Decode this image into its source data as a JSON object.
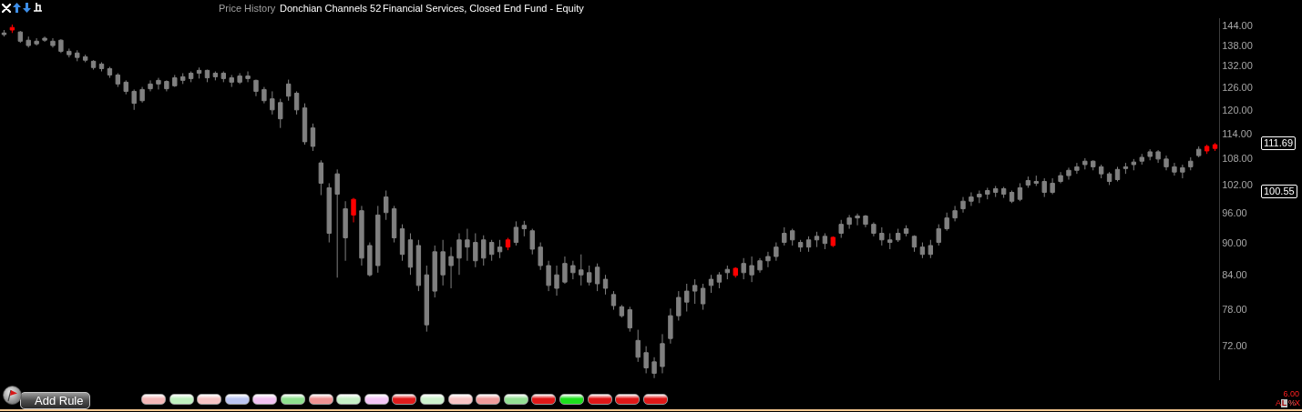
{
  "chart_data": {
    "type": "candlestick",
    "title": "Price History",
    "subtitle": "Donchian Channels 52",
    "annotations": [
      "Financial Services, Closed End Fund - Equity",
      "Add Rule",
      "6.00",
      "111.69",
      "100.55",
      "A",
      "L",
      "%",
      "X"
    ],
    "log": true,
    "tick_labels": "y",
    "ylim": [
      66.9,
      146.3
    ],
    "yticks": [
      {
        "value": 72,
        "label": "72.00"
      },
      {
        "value": 78,
        "label": "78.00"
      },
      {
        "value": 84,
        "label": "84.00"
      },
      {
        "value": 90,
        "label": "90.00"
      },
      {
        "value": 96,
        "label": "96.00"
      },
      {
        "value": 102,
        "label": "102.00"
      },
      {
        "value": 108,
        "label": "108.00"
      },
      {
        "value": 114,
        "label": "114.00"
      },
      {
        "value": 120,
        "label": "120.00"
      },
      {
        "value": 126,
        "label": "126.00"
      },
      {
        "value": 132,
        "label": "132.00"
      },
      {
        "value": 138,
        "label": "138.00"
      },
      {
        "value": 144,
        "label": "144.00"
      }
    ],
    "categories": [
      null,
      null,
      null,
      null,
      null,
      null,
      null,
      null,
      null,
      null,
      null,
      null,
      null,
      null,
      null,
      null,
      null,
      null,
      null,
      null,
      null,
      null,
      null,
      null,
      null,
      null,
      null,
      null,
      null,
      null,
      null,
      null,
      null,
      null,
      null,
      null,
      null,
      null,
      null,
      null,
      null,
      null,
      null,
      null,
      null,
      null,
      null,
      null,
      null,
      null,
      null,
      null,
      null,
      null,
      null,
      null,
      null,
      null,
      null,
      null,
      null,
      null,
      null,
      null,
      null,
      null,
      null,
      null,
      null,
      null,
      null,
      null,
      null,
      null,
      null,
      null,
      null,
      null,
      null,
      null,
      null,
      null,
      null,
      null,
      null,
      null,
      null,
      null,
      null,
      null,
      null,
      null,
      null,
      null,
      null,
      null,
      null,
      null,
      null,
      null,
      null,
      null,
      null,
      null,
      null,
      null,
      null,
      null,
      null,
      null,
      null,
      null,
      null,
      null,
      null,
      null,
      null,
      null,
      null,
      null,
      null,
      null,
      null,
      null,
      null,
      null,
      null,
      null,
      null,
      null,
      null,
      null,
      null,
      null,
      null,
      null,
      null,
      null,
      null,
      null,
      null,
      null,
      null,
      null,
      null,
      null,
      null,
      null,
      null,
      null
    ],
    "ohlc": [
      [
        141.2,
        142.6,
        140.6,
        141.7
      ],
      [
        143.4,
        144.3,
        141.7,
        142.6
      ],
      [
        139.2,
        142.3,
        138.7,
        142.0
      ],
      [
        137.9,
        140.6,
        137.3,
        139.5
      ],
      [
        138.4,
        140.1,
        137.9,
        139.2
      ],
      [
        139.5,
        140.6,
        139.0,
        140.1
      ],
      [
        137.9,
        140.1,
        137.3,
        139.2
      ],
      [
        136.2,
        139.8,
        135.7,
        139.5
      ],
      [
        135.2,
        137.0,
        134.4,
        136.2
      ],
      [
        134.4,
        136.5,
        133.3,
        135.7
      ],
      [
        133.6,
        135.2,
        133.0,
        134.6
      ],
      [
        131.5,
        133.6,
        130.9,
        133.3
      ],
      [
        131.2,
        133.0,
        130.4,
        132.5
      ],
      [
        129.4,
        131.7,
        128.6,
        131.2
      ],
      [
        126.9,
        129.9,
        126.1,
        129.4
      ],
      [
        124.9,
        127.9,
        124.1,
        127.4
      ],
      [
        121.7,
        125.4,
        120.0,
        124.9
      ],
      [
        122.4,
        126.1,
        121.9,
        125.4
      ],
      [
        125.6,
        127.9,
        124.9,
        126.9
      ],
      [
        126.9,
        128.6,
        125.4,
        127.9
      ],
      [
        125.6,
        127.9,
        124.9,
        127.6
      ],
      [
        126.4,
        129.4,
        126.1,
        128.6
      ],
      [
        127.9,
        129.9,
        126.9,
        128.9
      ],
      [
        128.4,
        130.4,
        127.4,
        129.9
      ],
      [
        129.9,
        131.5,
        128.4,
        130.7
      ],
      [
        128.6,
        130.9,
        127.4,
        130.7
      ],
      [
        128.9,
        130.4,
        127.9,
        129.9
      ],
      [
        128.4,
        130.4,
        127.4,
        129.9
      ],
      [
        127.4,
        129.4,
        126.1,
        128.6
      ],
      [
        127.4,
        129.9,
        126.9,
        129.1
      ],
      [
        128.4,
        130.4,
        127.4,
        129.1
      ],
      [
        124.9,
        128.1,
        123.6,
        127.9
      ],
      [
        122.4,
        126.1,
        121.7,
        125.4
      ],
      [
        120.0,
        124.9,
        118.8,
        122.9
      ],
      [
        117.7,
        122.9,
        115.4,
        121.9
      ],
      [
        123.6,
        128.1,
        122.4,
        126.9
      ],
      [
        120.0,
        124.9,
        118.8,
        124.4
      ],
      [
        112.0,
        121.7,
        111.3,
        120.5
      ],
      [
        110.9,
        116.5,
        109.8,
        115.4
      ],
      [
        102.4,
        107.6,
        99.8,
        107.0
      ],
      [
        91.9,
        102.4,
        90.1,
        101.4
      ],
      [
        100.0,
        105.5,
        83.5,
        104.5
      ],
      [
        91.0,
        98.5,
        86.6,
        96.9
      ],
      [
        98.9,
        99.2,
        94.1,
        95.6
      ],
      [
        87.1,
        97.5,
        85.7,
        96.5
      ],
      [
        84.0,
        90.1,
        83.7,
        89.5
      ],
      [
        85.7,
        97.5,
        84.4,
        95.6
      ],
      [
        96.1,
        100.8,
        94.6,
        99.4
      ],
      [
        91.0,
        97.5,
        90.1,
        96.9
      ],
      [
        87.8,
        93.7,
        86.6,
        92.8
      ],
      [
        85.4,
        91.9,
        84.0,
        90.6
      ],
      [
        82.1,
        90.6,
        81.1,
        89.5
      ],
      [
        75.4,
        85.7,
        74.3,
        84.0
      ],
      [
        81.1,
        89.5,
        80.0,
        88.3
      ],
      [
        84.0,
        90.6,
        82.1,
        88.3
      ],
      [
        85.7,
        89.2,
        81.6,
        87.4
      ],
      [
        87.1,
        91.9,
        84.0,
        90.6
      ],
      [
        89.2,
        92.8,
        86.6,
        90.6
      ],
      [
        86.6,
        91.9,
        85.4,
        90.1
      ],
      [
        87.1,
        91.5,
        85.7,
        90.6
      ],
      [
        87.8,
        90.6,
        86.6,
        90.1
      ],
      [
        88.3,
        90.6,
        87.1,
        89.2
      ],
      [
        90.6,
        91.0,
        88.6,
        89.2
      ],
      [
        90.1,
        94.3,
        89.5,
        93.1
      ],
      [
        92.8,
        94.4,
        91.3,
        93.5
      ],
      [
        88.8,
        92.8,
        87.8,
        92.4
      ],
      [
        85.7,
        90.1,
        84.9,
        89.2
      ],
      [
        82.1,
        86.6,
        81.1,
        85.7
      ],
      [
        81.6,
        85.7,
        80.3,
        84.0
      ],
      [
        82.7,
        87.4,
        82.4,
        86.1
      ],
      [
        84.4,
        86.6,
        83.2,
        85.7
      ],
      [
        84.0,
        87.8,
        82.1,
        84.9
      ],
      [
        82.7,
        85.7,
        82.1,
        84.4
      ],
      [
        82.4,
        86.1,
        81.1,
        85.4
      ],
      [
        81.6,
        84.0,
        80.5,
        83.2
      ],
      [
        78.6,
        81.1,
        77.9,
        80.5
      ],
      [
        76.9,
        78.7,
        76.6,
        78.4
      ],
      [
        74.9,
        78.4,
        74.3,
        77.9
      ],
      [
        70.3,
        74.6,
        69.6,
        72.9
      ],
      [
        68.7,
        72.0,
        67.9,
        71.0
      ],
      [
        67.9,
        70.3,
        67.2,
        69.6
      ],
      [
        68.9,
        73.9,
        67.9,
        72.4
      ],
      [
        73.2,
        78.1,
        72.4,
        76.9
      ],
      [
        76.9,
        81.1,
        76.1,
        80.0
      ],
      [
        79.2,
        82.4,
        77.6,
        81.1
      ],
      [
        81.1,
        83.2,
        78.9,
        82.1
      ],
      [
        78.9,
        82.4,
        77.9,
        81.6
      ],
      [
        82.1,
        84.0,
        80.8,
        83.2
      ],
      [
        82.7,
        84.5,
        81.6,
        84.0
      ],
      [
        84.4,
        85.7,
        83.2,
        85.0
      ],
      [
        85.2,
        85.4,
        83.5,
        83.9
      ],
      [
        84.4,
        87.1,
        83.2,
        86.1
      ],
      [
        84.0,
        87.4,
        82.7,
        85.7
      ],
      [
        84.9,
        87.1,
        84.4,
        86.6
      ],
      [
        86.6,
        88.3,
        85.4,
        87.4
      ],
      [
        87.4,
        90.1,
        86.6,
        89.2
      ],
      [
        90.1,
        93.1,
        89.5,
        91.9
      ],
      [
        90.6,
        92.8,
        89.5,
        92.4
      ],
      [
        89.2,
        90.6,
        88.3,
        90.1
      ],
      [
        89.2,
        91.3,
        88.3,
        90.6
      ],
      [
        90.6,
        92.2,
        89.2,
        91.3
      ],
      [
        89.9,
        91.9,
        88.8,
        91.3
      ],
      [
        91.1,
        91.3,
        89.2,
        89.5
      ],
      [
        91.9,
        94.6,
        91.0,
        93.7
      ],
      [
        93.7,
        95.6,
        92.8,
        95.0
      ],
      [
        95.0,
        95.9,
        93.5,
        95.4
      ],
      [
        93.7,
        95.6,
        93.1,
        95.4
      ],
      [
        91.9,
        94.1,
        91.3,
        93.7
      ],
      [
        90.6,
        93.1,
        89.5,
        91.9
      ],
      [
        90.1,
        91.9,
        88.8,
        90.6
      ],
      [
        90.6,
        92.8,
        90.2,
        91.9
      ],
      [
        91.9,
        93.5,
        91.3,
        92.8
      ],
      [
        89.2,
        91.5,
        88.3,
        91.3
      ],
      [
        87.8,
        90.1,
        87.1,
        89.2
      ],
      [
        87.8,
        90.6,
        87.1,
        89.5
      ],
      [
        90.1,
        93.7,
        89.5,
        92.8
      ],
      [
        92.8,
        96.1,
        92.4,
        95.0
      ],
      [
        95.0,
        97.5,
        94.3,
        96.5
      ],
      [
        96.9,
        99.4,
        96.1,
        98.5
      ],
      [
        98.5,
        100.4,
        97.5,
        99.4
      ],
      [
        99.4,
        100.8,
        98.1,
        100.0
      ],
      [
        100.0,
        101.4,
        98.9,
        100.8
      ],
      [
        100.4,
        101.8,
        99.4,
        101.2
      ],
      [
        100.0,
        101.6,
        99.2,
        101.2
      ],
      [
        98.5,
        100.8,
        98.1,
        100.4
      ],
      [
        98.9,
        102.4,
        98.5,
        101.4
      ],
      [
        102.0,
        103.9,
        101.4,
        103.0
      ],
      [
        102.4,
        104.1,
        101.8,
        102.8
      ],
      [
        100.4,
        103.5,
        99.4,
        102.8
      ],
      [
        100.4,
        103.5,
        100.0,
        102.4
      ],
      [
        102.8,
        104.9,
        102.4,
        104.1
      ],
      [
        104.1,
        105.9,
        103.2,
        105.3
      ],
      [
        105.3,
        107.0,
        104.5,
        106.1
      ],
      [
        106.6,
        108.1,
        105.5,
        107.4
      ],
      [
        106.1,
        107.6,
        105.3,
        107.4
      ],
      [
        104.5,
        106.6,
        103.5,
        106.1
      ],
      [
        102.8,
        104.9,
        102.0,
        104.5
      ],
      [
        103.2,
        106.1,
        102.8,
        105.5
      ],
      [
        105.7,
        107.0,
        104.5,
        106.1
      ],
      [
        106.6,
        107.9,
        105.3,
        107.2
      ],
      [
        107.4,
        109.1,
        106.6,
        108.3
      ],
      [
        108.5,
        110.2,
        107.6,
        109.6
      ],
      [
        107.9,
        110.0,
        107.0,
        109.6
      ],
      [
        106.1,
        108.7,
        105.3,
        107.9
      ],
      [
        104.9,
        107.0,
        104.1,
        106.1
      ],
      [
        104.9,
        106.6,
        103.5,
        105.9
      ],
      [
        106.1,
        108.3,
        105.3,
        107.4
      ],
      [
        108.7,
        110.9,
        108.3,
        110.2
      ],
      [
        110.9,
        111.3,
        109.1,
        109.8
      ],
      [
        111.3,
        111.7,
        109.8,
        110.4
      ]
    ],
    "colors": [
      "#808080",
      "#ff0000",
      "#808080",
      "#808080",
      "#808080",
      "#808080",
      "#808080",
      "#808080",
      "#808080",
      "#808080",
      "#808080",
      "#808080",
      "#808080",
      "#808080",
      "#808080",
      "#808080",
      "#808080",
      "#808080",
      "#808080",
      "#808080",
      "#808080",
      "#808080",
      "#808080",
      "#808080",
      "#808080",
      "#808080",
      "#808080",
      "#808080",
      "#808080",
      "#808080",
      "#808080",
      "#808080",
      "#808080",
      "#808080",
      "#808080",
      "#808080",
      "#808080",
      "#808080",
      "#808080",
      "#808080",
      "#808080",
      "#808080",
      "#808080",
      "#ff0000",
      "#808080",
      "#808080",
      "#808080",
      "#808080",
      "#808080",
      "#808080",
      "#808080",
      "#808080",
      "#808080",
      "#808080",
      "#808080",
      "#808080",
      "#808080",
      "#808080",
      "#808080",
      "#808080",
      "#808080",
      "#808080",
      "#ff0000",
      "#808080",
      "#808080",
      "#808080",
      "#808080",
      "#808080",
      "#808080",
      "#808080",
      "#808080",
      "#808080",
      "#808080",
      "#808080",
      "#808080",
      "#808080",
      "#808080",
      "#808080",
      "#808080",
      "#808080",
      "#808080",
      "#808080",
      "#808080",
      "#808080",
      "#808080",
      "#808080",
      "#808080",
      "#808080",
      "#808080",
      "#808080",
      "#ff0000",
      "#808080",
      "#808080",
      "#808080",
      "#808080",
      "#808080",
      "#808080",
      "#808080",
      "#808080",
      "#808080",
      "#808080",
      "#808080",
      "#ff0000",
      "#808080",
      "#808080",
      "#808080",
      "#808080",
      "#808080",
      "#808080",
      "#808080",
      "#808080",
      "#808080",
      "#808080",
      "#808080",
      "#808080",
      "#808080",
      "#808080",
      "#808080",
      "#808080",
      "#808080",
      "#808080",
      "#808080",
      "#808080",
      "#808080",
      "#808080",
      "#808080",
      "#808080",
      "#808080",
      "#808080",
      "#808080",
      "#808080",
      "#808080",
      "#808080",
      "#808080",
      "#808080",
      "#808080",
      "#808080",
      "#808080",
      "#808080",
      "#808080",
      "#808080",
      "#808080",
      "#808080",
      "#808080",
      "#808080",
      "#808080",
      "#808080",
      "#808080",
      "#ff0000",
      "#ff0000"
    ]
  }
}
